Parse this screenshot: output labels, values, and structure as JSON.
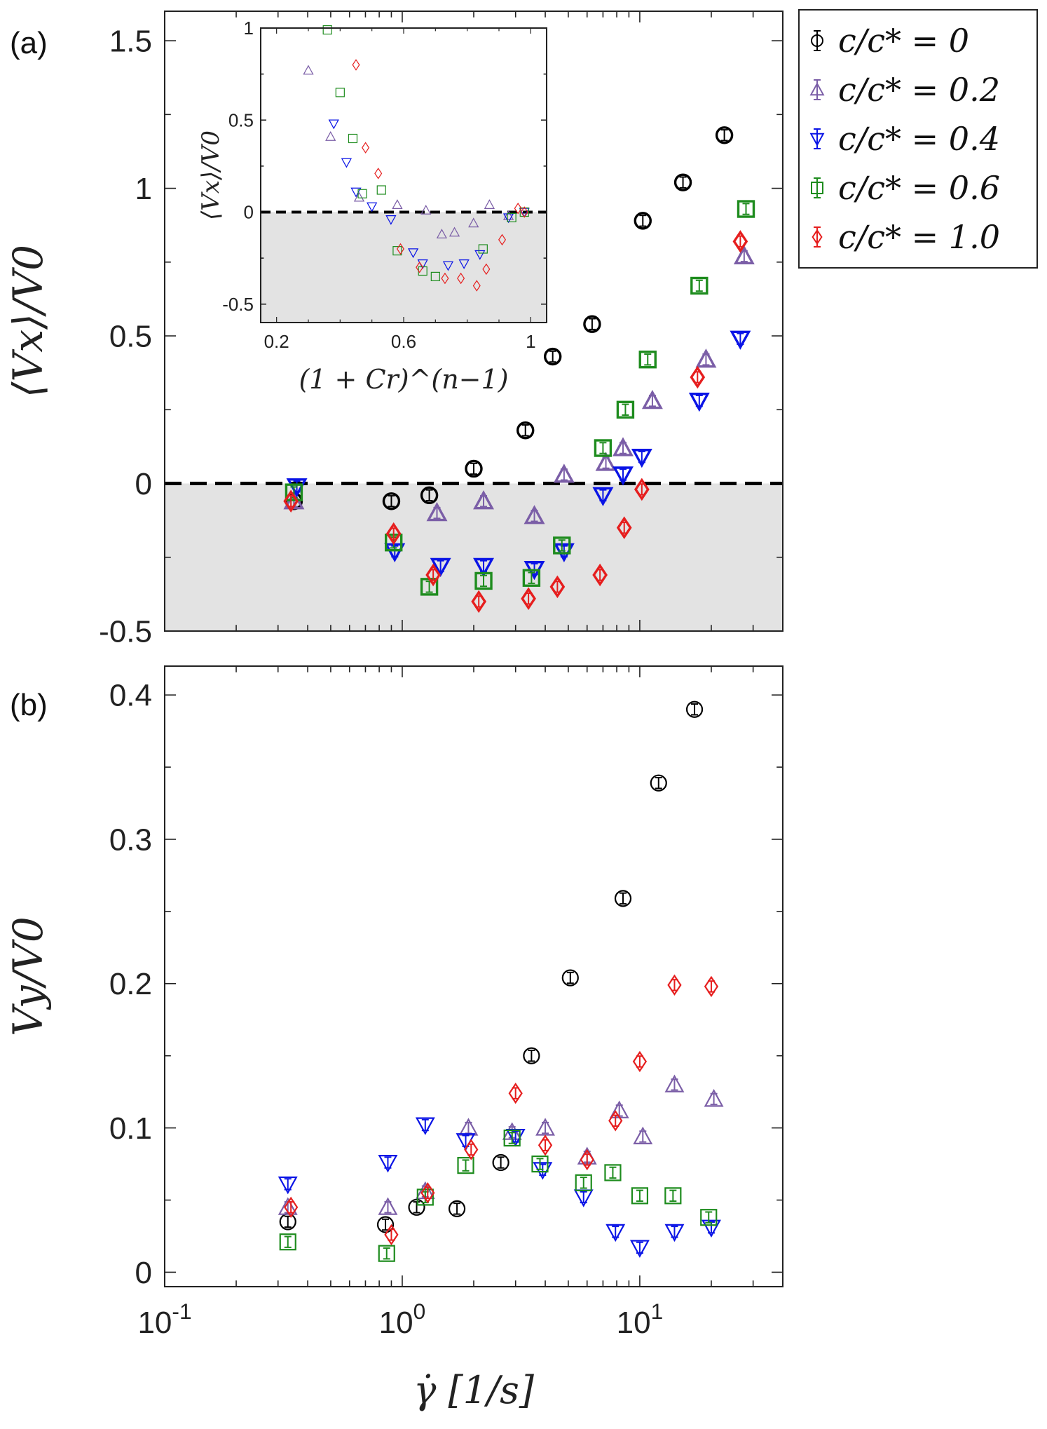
{
  "panel_labels": {
    "a": "(a)",
    "b": "(b)"
  },
  "legend": {
    "entries": [
      {
        "label": "c/c* = 0",
        "color": "#000000",
        "marker": "circle"
      },
      {
        "label": "c/c* = 0.2",
        "color": "#7b5ea7",
        "marker": "triangle-up"
      },
      {
        "label": "c/c* = 0.4",
        "color": "#0a14e6",
        "marker": "triangle-down"
      },
      {
        "label": "c/c* = 0.6",
        "color": "#1e8c1e",
        "marker": "square"
      },
      {
        "label": "c/c* = 1.0",
        "color": "#e61e1e",
        "marker": "diamond"
      }
    ]
  },
  "chart_data": [
    {
      "id": "panel-a",
      "type": "scatter",
      "ylabel": "⟨Vx⟩/V0",
      "xlabel": "",
      "xscale": "log",
      "xlim": [
        0.1,
        40
      ],
      "ylim": [
        -0.5,
        1.6
      ],
      "yticks": [
        -0.5,
        0,
        0.5,
        1,
        1.5
      ],
      "ytick_labels": [
        "-0.5",
        "0",
        "0.5",
        "1",
        "1.5"
      ],
      "zero_line": true,
      "negative_region_shaded": true,
      "series": [
        {
          "name": "c/c* = 0",
          "points": [
            [
              0.35,
              -0.06
            ],
            [
              0.9,
              -0.06
            ],
            [
              1.3,
              -0.04
            ],
            [
              2.0,
              0.05
            ],
            [
              3.3,
              0.18
            ],
            [
              4.3,
              0.43
            ],
            [
              6.3,
              0.54
            ],
            [
              10.3,
              0.89
            ],
            [
              15.2,
              1.02
            ],
            [
              22.7,
              1.18
            ]
          ]
        },
        {
          "name": "c/c* = 0.2",
          "points": [
            [
              0.35,
              -0.06
            ],
            [
              1.4,
              -0.1
            ],
            [
              2.2,
              -0.06
            ],
            [
              3.6,
              -0.11
            ],
            [
              4.8,
              0.03
            ],
            [
              7.2,
              0.07
            ],
            [
              8.5,
              0.12
            ],
            [
              11.3,
              0.28
            ],
            [
              19.0,
              0.42
            ],
            [
              27.5,
              0.77
            ]
          ]
        },
        {
          "name": "c/c* = 0.4",
          "points": [
            [
              0.36,
              -0.01
            ],
            [
              0.93,
              -0.23
            ],
            [
              1.45,
              -0.28
            ],
            [
              2.2,
              -0.28
            ],
            [
              3.6,
              -0.29
            ],
            [
              4.8,
              -0.23
            ],
            [
              7.0,
              -0.04
            ],
            [
              8.5,
              0.03
            ],
            [
              10.2,
              0.09
            ],
            [
              17.8,
              0.28
            ],
            [
              26.5,
              0.49
            ]
          ]
        },
        {
          "name": "c/c* = 0.6",
          "points": [
            [
              0.35,
              -0.03
            ],
            [
              0.92,
              -0.2
            ],
            [
              1.3,
              -0.35
            ],
            [
              2.2,
              -0.33
            ],
            [
              3.5,
              -0.32
            ],
            [
              4.7,
              -0.21
            ],
            [
              7.0,
              0.12
            ],
            [
              8.7,
              0.25
            ],
            [
              10.8,
              0.42
            ],
            [
              17.8,
              0.67
            ],
            [
              28.0,
              0.93
            ]
          ]
        },
        {
          "name": "c/c* = 1.0",
          "points": [
            [
              0.34,
              -0.06
            ],
            [
              0.92,
              -0.17
            ],
            [
              1.35,
              -0.31
            ],
            [
              2.1,
              -0.4
            ],
            [
              3.4,
              -0.39
            ],
            [
              4.5,
              -0.35
            ],
            [
              6.8,
              -0.31
            ],
            [
              8.6,
              -0.15
            ],
            [
              10.2,
              -0.02
            ],
            [
              17.5,
              0.36
            ],
            [
              26.5,
              0.82
            ]
          ]
        }
      ]
    },
    {
      "id": "inset",
      "type": "scatter",
      "ylabel": "⟨Vx⟩/V0",
      "xlabel": "(1 + Cr)^(n−1)",
      "xlim": [
        0.15,
        1.05
      ],
      "ylim": [
        -0.6,
        1.0
      ],
      "xticks": [
        0.2,
        0.6,
        1
      ],
      "xtick_labels": [
        "0.2",
        "0.6",
        "1"
      ],
      "yticks": [
        -0.5,
        0,
        0.5,
        1
      ],
      "ytick_labels": [
        "-0.5",
        "0",
        "0.5",
        "1"
      ],
      "zero_line": true,
      "negative_region_shaded": true,
      "series": [
        {
          "name": "c/c* = 0.2",
          "points": [
            [
              0.3,
              0.77
            ],
            [
              0.37,
              0.41
            ],
            [
              0.46,
              0.08
            ],
            [
              0.58,
              0.04
            ],
            [
              0.67,
              0.01
            ],
            [
              0.72,
              -0.12
            ],
            [
              0.76,
              -0.11
            ],
            [
              0.82,
              -0.06
            ],
            [
              0.87,
              0.04
            ],
            [
              0.93,
              -0.02
            ]
          ]
        },
        {
          "name": "c/c* = 0.4",
          "points": [
            [
              0.38,
              0.48
            ],
            [
              0.42,
              0.27
            ],
            [
              0.45,
              0.11
            ],
            [
              0.5,
              0.03
            ],
            [
              0.56,
              -0.04
            ],
            [
              0.63,
              -0.22
            ],
            [
              0.66,
              -0.28
            ],
            [
              0.74,
              -0.29
            ],
            [
              0.79,
              -0.28
            ],
            [
              0.84,
              -0.23
            ],
            [
              0.93,
              -0.03
            ],
            [
              0.98,
              0
            ]
          ]
        },
        {
          "name": "c/c* = 0.6",
          "points": [
            [
              0.36,
              0.99
            ],
            [
              0.4,
              0.65
            ],
            [
              0.44,
              0.4
            ],
            [
              0.47,
              0.1
            ],
            [
              0.53,
              0.12
            ],
            [
              0.58,
              -0.21
            ],
            [
              0.66,
              -0.32
            ],
            [
              0.7,
              -0.35
            ],
            [
              0.85,
              -0.2
            ],
            [
              0.94,
              -0.03
            ],
            [
              0.98,
              0
            ]
          ]
        },
        {
          "name": "c/c* = 1.0",
          "points": [
            [
              0.45,
              0.8
            ],
            [
              0.48,
              0.35
            ],
            [
              0.52,
              0.21
            ],
            [
              0.59,
              -0.2
            ],
            [
              0.65,
              -0.3
            ],
            [
              0.73,
              -0.36
            ],
            [
              0.78,
              -0.36
            ],
            [
              0.83,
              -0.4
            ],
            [
              0.86,
              -0.31
            ],
            [
              0.91,
              -0.15
            ],
            [
              0.96,
              0.02
            ],
            [
              0.98,
              0
            ]
          ]
        }
      ]
    },
    {
      "id": "panel-b",
      "type": "scatter",
      "ylabel": "Vy/V0",
      "xlabel": "γ̇  [1/s]",
      "xscale": "log",
      "xlim": [
        0.1,
        40
      ],
      "ylim": [
        -0.01,
        0.42
      ],
      "xticks": [
        0.1,
        1,
        10
      ],
      "xtick_labels": [
        "10",
        "10",
        "10"
      ],
      "xtick_exponents": [
        "-1",
        "0",
        "1"
      ],
      "yticks": [
        0,
        0.1,
        0.2,
        0.3,
        0.4
      ],
      "ytick_labels": [
        "0",
        "0.1",
        "0.2",
        "0.3",
        "0.4"
      ],
      "series": [
        {
          "name": "c/c* = 0",
          "points": [
            [
              0.33,
              0.035
            ],
            [
              0.85,
              0.033
            ],
            [
              1.15,
              0.045
            ],
            [
              1.7,
              0.044
            ],
            [
              2.6,
              0.076
            ],
            [
              3.5,
              0.15
            ],
            [
              5.1,
              0.204
            ],
            [
              8.5,
              0.259
            ],
            [
              12.0,
              0.339
            ],
            [
              17.0,
              0.39
            ]
          ]
        },
        {
          "name": "c/c* = 0.2",
          "points": [
            [
              0.33,
              0.045
            ],
            [
              0.87,
              0.045
            ],
            [
              1.25,
              0.056
            ],
            [
              1.9,
              0.1
            ],
            [
              2.9,
              0.097
            ],
            [
              4.0,
              0.1
            ],
            [
              6.0,
              0.08
            ],
            [
              8.2,
              0.112
            ],
            [
              10.3,
              0.094
            ],
            [
              14.0,
              0.13
            ],
            [
              20.5,
              0.12
            ]
          ]
        },
        {
          "name": "c/c* = 0.4",
          "points": [
            [
              0.33,
              0.061
            ],
            [
              0.87,
              0.076
            ],
            [
              1.25,
              0.102
            ],
            [
              1.85,
              0.091
            ],
            [
              3.0,
              0.094
            ],
            [
              3.9,
              0.071
            ],
            [
              5.8,
              0.052
            ],
            [
              7.9,
              0.028
            ],
            [
              10.0,
              0.017
            ],
            [
              14.0,
              0.028
            ],
            [
              20.0,
              0.031
            ]
          ]
        },
        {
          "name": "c/c* = 0.6",
          "points": [
            [
              0.33,
              0.021
            ],
            [
              0.86,
              0.013
            ],
            [
              1.25,
              0.052
            ],
            [
              1.85,
              0.074
            ],
            [
              2.9,
              0.093
            ],
            [
              3.8,
              0.075
            ],
            [
              5.8,
              0.062
            ],
            [
              7.7,
              0.069
            ],
            [
              10.0,
              0.053
            ],
            [
              13.8,
              0.053
            ],
            [
              19.5,
              0.038
            ]
          ]
        },
        {
          "name": "c/c* = 1.0",
          "points": [
            [
              0.34,
              0.045
            ],
            [
              0.9,
              0.026
            ],
            [
              1.28,
              0.055
            ],
            [
              1.95,
              0.085
            ],
            [
              3.0,
              0.124
            ],
            [
              4.0,
              0.088
            ],
            [
              6.0,
              0.078
            ],
            [
              7.9,
              0.105
            ],
            [
              10.0,
              0.146
            ],
            [
              14.0,
              0.199
            ],
            [
              20.0,
              0.198
            ]
          ]
        }
      ]
    }
  ]
}
